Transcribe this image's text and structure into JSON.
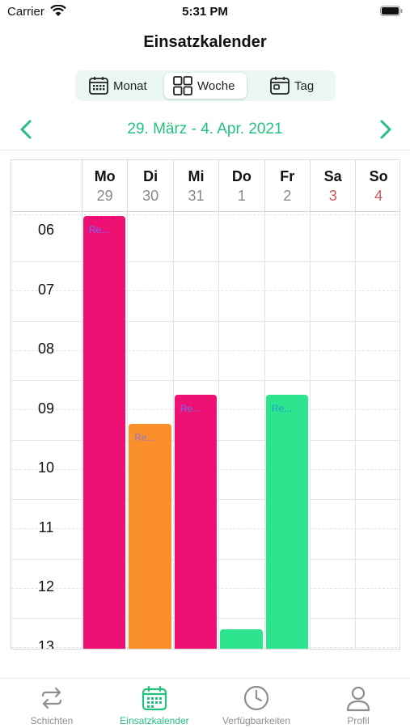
{
  "status_bar": {
    "carrier": "Carrier",
    "time": "5:31 PM"
  },
  "header": {
    "title": "Einsatzkalender"
  },
  "view_switch": {
    "month_label": "Monat",
    "week_label": "Woche",
    "day_label": "Tag",
    "selected": "Woche"
  },
  "date_nav": {
    "range": "29. März - 4. Apr. 2021"
  },
  "calendar": {
    "days": [
      {
        "name": "Mo",
        "num": "29",
        "weekend": false
      },
      {
        "name": "Di",
        "num": "30",
        "weekend": false
      },
      {
        "name": "Mi",
        "num": "31",
        "weekend": false
      },
      {
        "name": "Do",
        "num": "1",
        "weekend": false
      },
      {
        "name": "Fr",
        "num": "2",
        "weekend": false
      },
      {
        "name": "Sa",
        "num": "3",
        "weekend": true
      },
      {
        "name": "So",
        "num": "4",
        "weekend": true
      }
    ],
    "hours": [
      "06",
      "07",
      "08",
      "09",
      "10",
      "11",
      "12",
      "13"
    ],
    "events": [
      {
        "day": 0,
        "start": 6.0,
        "end": 13.0,
        "title": "Re...",
        "color": "#ee1173",
        "text_color": "#6c6cff"
      },
      {
        "day": 1,
        "start": 9.5,
        "end": 13.0,
        "title": "Re...",
        "color": "#fb8f2a",
        "text_color": "#8f7ad8"
      },
      {
        "day": 2,
        "start": 9.0,
        "end": 13.0,
        "title": "Re...",
        "color": "#ee1173",
        "text_color": "#6c6cff"
      },
      {
        "day": 3,
        "start": 12.95,
        "end": 13.0,
        "title": "",
        "color": "#2de58e",
        "text_color": "#1aa0c8"
      },
      {
        "day": 4,
        "start": 9.0,
        "end": 13.0,
        "title": "Re...",
        "color": "#2de58e",
        "text_color": "#1aa0c8"
      }
    ]
  },
  "tab_bar": {
    "items": [
      {
        "label": "Schichten",
        "icon": "swap-arrows-icon",
        "active": false
      },
      {
        "label": "Einsatzkalender",
        "icon": "calendar-icon",
        "active": true
      },
      {
        "label": "Verfügbarkeiten",
        "icon": "clock-icon",
        "active": false
      },
      {
        "label": "Profil",
        "icon": "person-icon",
        "active": false
      }
    ]
  },
  "colors": {
    "accent": "#22c27e",
    "weekend": "#c8585a"
  }
}
